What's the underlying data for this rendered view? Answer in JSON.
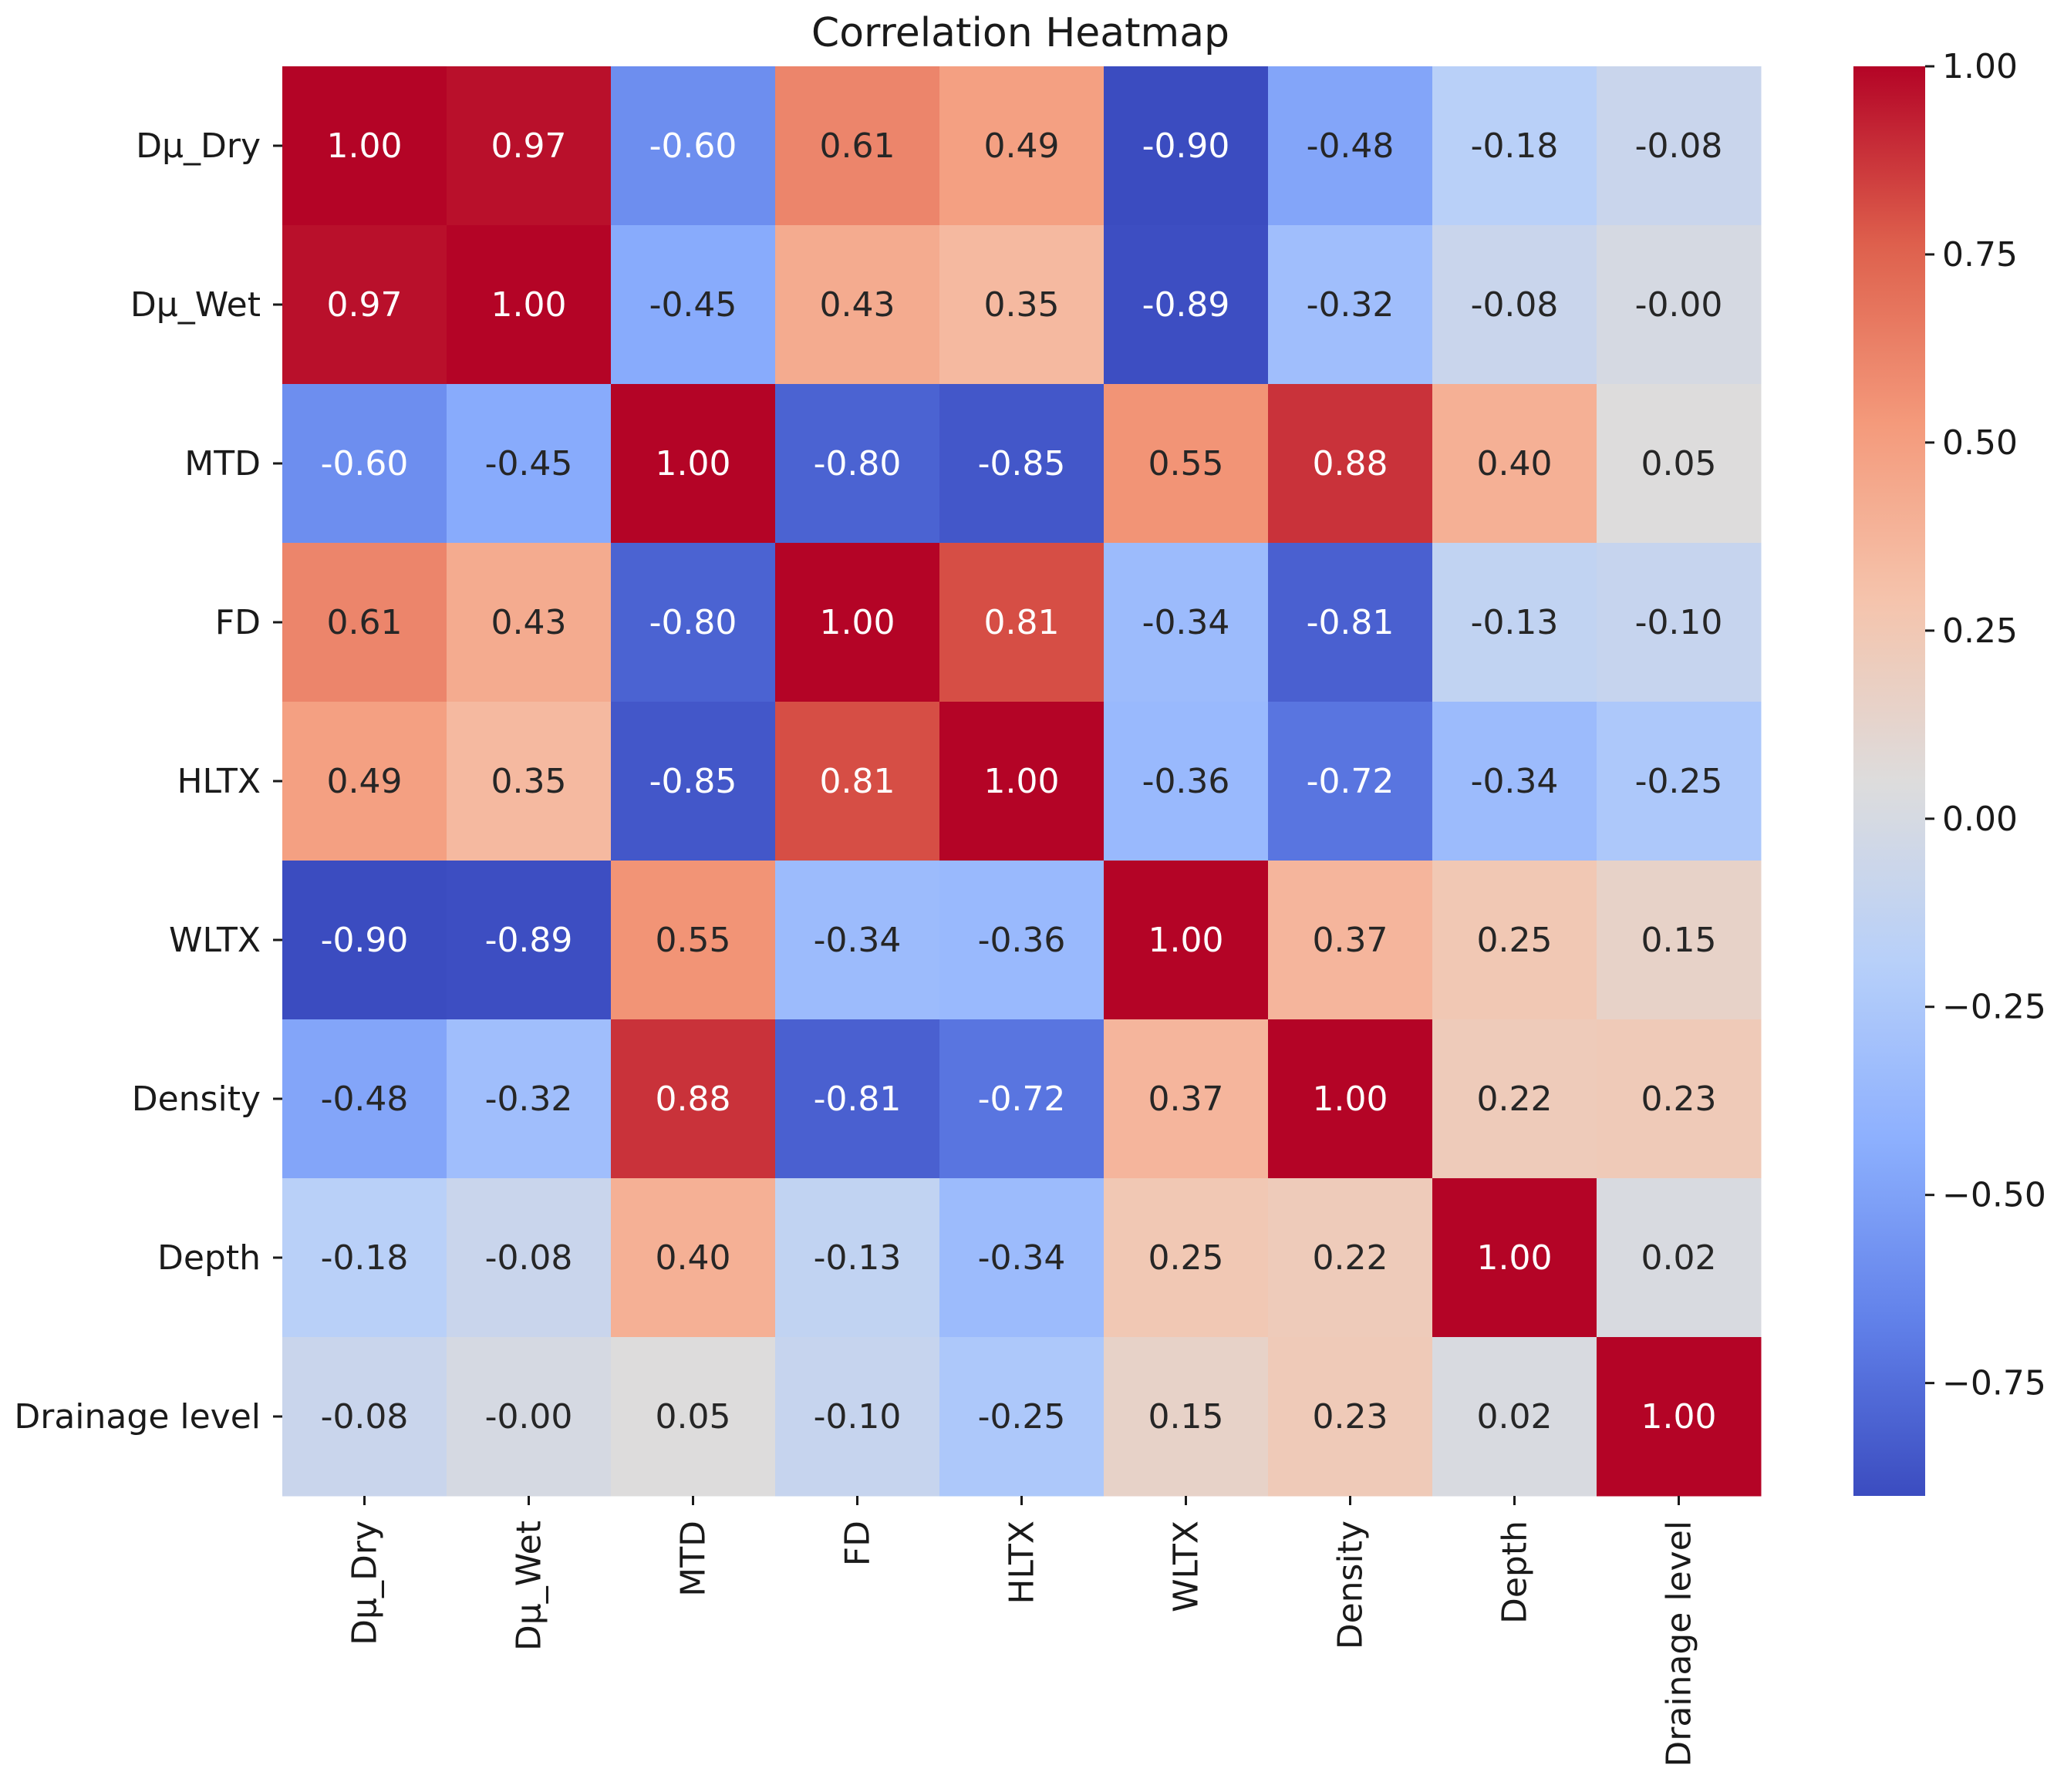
{
  "chart_data": {
    "type": "heatmap",
    "title": "Correlation Heatmap",
    "row_labels": [
      "Dμ_Dry",
      "Dμ_Wet",
      "MTD",
      "FD",
      "HLTX",
      "WLTX",
      "Density",
      "Depth",
      "Drainage level"
    ],
    "col_labels": [
      "Dμ_Dry",
      "Dμ_Wet",
      "MTD",
      "FD",
      "HLTX",
      "WLTX",
      "Density",
      "Depth",
      "Drainage level"
    ],
    "values": [
      [
        1.0,
        0.97,
        -0.6,
        0.61,
        0.49,
        -0.9,
        -0.48,
        -0.18,
        -0.08
      ],
      [
        0.97,
        1.0,
        -0.45,
        0.43,
        0.35,
        -0.89,
        -0.32,
        -0.08,
        -0.0
      ],
      [
        -0.6,
        -0.45,
        1.0,
        -0.8,
        -0.85,
        0.55,
        0.88,
        0.4,
        0.05
      ],
      [
        0.61,
        0.43,
        -0.8,
        1.0,
        0.81,
        -0.34,
        -0.81,
        -0.13,
        -0.1
      ],
      [
        0.49,
        0.35,
        -0.85,
        0.81,
        1.0,
        -0.36,
        -0.72,
        -0.34,
        -0.25
      ],
      [
        -0.9,
        -0.89,
        0.55,
        -0.34,
        -0.36,
        1.0,
        0.37,
        0.25,
        0.15
      ],
      [
        -0.48,
        -0.32,
        0.88,
        -0.81,
        -0.72,
        0.37,
        1.0,
        0.22,
        0.23
      ],
      [
        -0.18,
        -0.08,
        0.4,
        -0.13,
        -0.34,
        0.25,
        0.22,
        1.0,
        0.02
      ],
      [
        -0.08,
        -0.0,
        0.05,
        -0.1,
        -0.25,
        0.15,
        0.23,
        0.02,
        1.0
      ]
    ],
    "annotations": [
      [
        "1.00",
        "0.97",
        "-0.60",
        "0.61",
        "0.49",
        "-0.90",
        "-0.48",
        "-0.18",
        "-0.08"
      ],
      [
        "0.97",
        "1.00",
        "-0.45",
        "0.43",
        "0.35",
        "-0.89",
        "-0.32",
        "-0.08",
        "-0.00"
      ],
      [
        "-0.60",
        "-0.45",
        "1.00",
        "-0.80",
        "-0.85",
        "0.55",
        "0.88",
        "0.40",
        "0.05"
      ],
      [
        "0.61",
        "0.43",
        "-0.80",
        "1.00",
        "0.81",
        "-0.34",
        "-0.81",
        "-0.13",
        "-0.10"
      ],
      [
        "0.49",
        "0.35",
        "-0.85",
        "0.81",
        "1.00",
        "-0.36",
        "-0.72",
        "-0.34",
        "-0.25"
      ],
      [
        "-0.90",
        "-0.89",
        "0.55",
        "-0.34",
        "-0.36",
        "1.00",
        "0.37",
        "0.25",
        "0.15"
      ],
      [
        "-0.48",
        "-0.32",
        "0.88",
        "-0.81",
        "-0.72",
        "0.37",
        "1.00",
        "0.22",
        "0.23"
      ],
      [
        "-0.18",
        "-0.08",
        "0.40",
        "-0.13",
        "-0.34",
        "0.25",
        "0.22",
        "1.00",
        "0.02"
      ],
      [
        "-0.08",
        "-0.00",
        "0.05",
        "-0.10",
        "-0.25",
        "0.15",
        "0.23",
        "0.02",
        "1.00"
      ]
    ],
    "colormap": "coolwarm",
    "vmin": -0.9,
    "vmax": 1.0,
    "colorbar": {
      "ticks": [
        1.0,
        0.75,
        0.5,
        0.25,
        0.0,
        -0.25,
        -0.5,
        -0.75
      ],
      "tick_labels": [
        "1.00",
        "0.75",
        "0.50",
        "0.25",
        "0.00",
        "−0.25",
        "−0.50",
        "−0.75"
      ],
      "placement": "right"
    },
    "colors": {
      "cold": "#3b4cc0",
      "neutral": "#dddcdc",
      "hot": "#b40426"
    }
  }
}
